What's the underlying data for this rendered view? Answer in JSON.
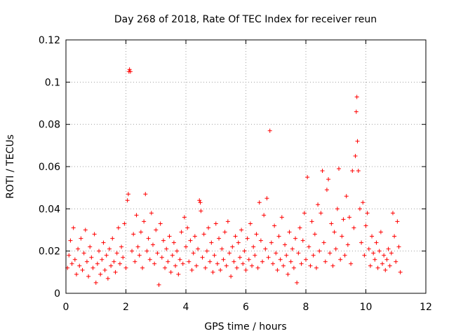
{
  "chart_data": {
    "type": "scatter",
    "title": "Day 268 of 2018, Rate Of TEC Index for receiver reun",
    "xlabel": "GPS time / hours",
    "ylabel": "ROTI / TECUs",
    "xlim": [
      0,
      12
    ],
    "ylim": [
      0,
      0.12
    ],
    "xticks": [
      0,
      2,
      4,
      6,
      8,
      10,
      12
    ],
    "xtick_labels": [
      "0",
      "2",
      "4",
      "6",
      "8",
      "10",
      "12"
    ],
    "yticks": [
      0,
      0.02,
      0.04,
      0.06,
      0.08,
      0.1,
      0.12
    ],
    "ytick_labels": [
      "0",
      "0.02",
      "0.04",
      "0.06",
      "0.08",
      "0.1",
      "0.12"
    ],
    "grid": true,
    "marker": "+",
    "color": "#ff0000",
    "series": [
      {
        "name": "ROTI",
        "points": [
          [
            0.05,
            0.012
          ],
          [
            0.1,
            0.018
          ],
          [
            0.15,
            0.025
          ],
          [
            0.2,
            0.014
          ],
          [
            0.25,
            0.031
          ],
          [
            0.3,
            0.016
          ],
          [
            0.35,
            0.009
          ],
          [
            0.4,
            0.021
          ],
          [
            0.45,
            0.013
          ],
          [
            0.5,
            0.026
          ],
          [
            0.55,
            0.011
          ],
          [
            0.6,
            0.019
          ],
          [
            0.65,
            0.03
          ],
          [
            0.7,
            0.015
          ],
          [
            0.75,
            0.008
          ],
          [
            0.8,
            0.022
          ],
          [
            0.85,
            0.017
          ],
          [
            0.9,
            0.012
          ],
          [
            0.95,
            0.028
          ],
          [
            1.0,
            0.005
          ],
          [
            1.05,
            0.014
          ],
          [
            1.1,
            0.02
          ],
          [
            1.15,
            0.009
          ],
          [
            1.2,
            0.016
          ],
          [
            1.25,
            0.024
          ],
          [
            1.3,
            0.011
          ],
          [
            1.35,
            0.018
          ],
          [
            1.4,
            0.007
          ],
          [
            1.45,
            0.021
          ],
          [
            1.5,
            0.013
          ],
          [
            1.55,
            0.026
          ],
          [
            1.6,
            0.015
          ],
          [
            1.65,
            0.01
          ],
          [
            1.7,
            0.019
          ],
          [
            1.75,
            0.031
          ],
          [
            1.8,
            0.014
          ],
          [
            1.85,
            0.022
          ],
          [
            1.9,
            0.017
          ],
          [
            1.95,
            0.033
          ],
          [
            2.0,
            0.012
          ],
          [
            2.05,
            0.044
          ],
          [
            2.08,
            0.047
          ],
          [
            2.1,
            0.105
          ],
          [
            2.12,
            0.106
          ],
          [
            2.15,
            0.105
          ],
          [
            2.2,
            0.02
          ],
          [
            2.25,
            0.028
          ],
          [
            2.3,
            0.015
          ],
          [
            2.35,
            0.037
          ],
          [
            2.4,
            0.022
          ],
          [
            2.45,
            0.018
          ],
          [
            2.5,
            0.029
          ],
          [
            2.55,
            0.012
          ],
          [
            2.6,
            0.034
          ],
          [
            2.65,
            0.047
          ],
          [
            2.7,
            0.02
          ],
          [
            2.75,
            0.026
          ],
          [
            2.8,
            0.016
          ],
          [
            2.85,
            0.038
          ],
          [
            2.9,
            0.023
          ],
          [
            2.95,
            0.014
          ],
          [
            3.0,
            0.03
          ],
          [
            3.05,
            0.019
          ],
          [
            3.1,
            0.004
          ],
          [
            3.15,
            0.033
          ],
          [
            3.2,
            0.017
          ],
          [
            3.25,
            0.025
          ],
          [
            3.3,
            0.012
          ],
          [
            3.35,
            0.021
          ],
          [
            3.4,
            0.015
          ],
          [
            3.45,
            0.027
          ],
          [
            3.5,
            0.01
          ],
          [
            3.55,
            0.018
          ],
          [
            3.6,
            0.024
          ],
          [
            3.65,
            0.013
          ],
          [
            3.7,
            0.02
          ],
          [
            3.75,
            0.009
          ],
          [
            3.8,
            0.016
          ],
          [
            3.85,
            0.029
          ],
          [
            3.9,
            0.014
          ],
          [
            3.95,
            0.036
          ],
          [
            4.0,
            0.022
          ],
          [
            4.05,
            0.031
          ],
          [
            4.1,
            0.015
          ],
          [
            4.15,
            0.025
          ],
          [
            4.2,
            0.011
          ],
          [
            4.25,
            0.019
          ],
          [
            4.3,
            0.027
          ],
          [
            4.35,
            0.013
          ],
          [
            4.4,
            0.021
          ],
          [
            4.45,
            0.044
          ],
          [
            4.48,
            0.043
          ],
          [
            4.5,
            0.039
          ],
          [
            4.55,
            0.017
          ],
          [
            4.6,
            0.028
          ],
          [
            4.65,
            0.012
          ],
          [
            4.7,
            0.02
          ],
          [
            4.75,
            0.031
          ],
          [
            4.8,
            0.015
          ],
          [
            4.85,
            0.024
          ],
          [
            4.9,
            0.01
          ],
          [
            4.95,
            0.018
          ],
          [
            5.0,
            0.033
          ],
          [
            5.05,
            0.014
          ],
          [
            5.1,
            0.026
          ],
          [
            5.15,
            0.011
          ],
          [
            5.2,
            0.021
          ],
          [
            5.25,
            0.016
          ],
          [
            5.3,
            0.029
          ],
          [
            5.35,
            0.013
          ],
          [
            5.4,
            0.034
          ],
          [
            5.45,
            0.019
          ],
          [
            5.5,
            0.008
          ],
          [
            5.55,
            0.022
          ],
          [
            5.6,
            0.015
          ],
          [
            5.65,
            0.027
          ],
          [
            5.7,
            0.012
          ],
          [
            5.75,
            0.024
          ],
          [
            5.8,
            0.017
          ],
          [
            5.85,
            0.03
          ],
          [
            5.9,
            0.014
          ],
          [
            5.95,
            0.02
          ],
          [
            6.0,
            0.011
          ],
          [
            6.05,
            0.026
          ],
          [
            6.1,
            0.016
          ],
          [
            6.15,
            0.033
          ],
          [
            6.2,
            0.013
          ],
          [
            6.25,
            0.022
          ],
          [
            6.3,
            0.018
          ],
          [
            6.35,
            0.028
          ],
          [
            6.4,
            0.012
          ],
          [
            6.45,
            0.043
          ],
          [
            6.5,
            0.025
          ],
          [
            6.55,
            0.015
          ],
          [
            6.6,
            0.037
          ],
          [
            6.65,
            0.021
          ],
          [
            6.7,
            0.045
          ],
          [
            6.75,
            0.017
          ],
          [
            6.8,
            0.077
          ],
          [
            6.85,
            0.024
          ],
          [
            6.9,
            0.014
          ],
          [
            6.95,
            0.032
          ],
          [
            7.0,
            0.019
          ],
          [
            7.05,
            0.011
          ],
          [
            7.1,
            0.027
          ],
          [
            7.15,
            0.016
          ],
          [
            7.2,
            0.036
          ],
          [
            7.25,
            0.013
          ],
          [
            7.3,
            0.023
          ],
          [
            7.35,
            0.018
          ],
          [
            7.4,
            0.009
          ],
          [
            7.45,
            0.029
          ],
          [
            7.5,
            0.015
          ],
          [
            7.55,
            0.021
          ],
          [
            7.6,
            0.012
          ],
          [
            7.65,
            0.026
          ],
          [
            7.7,
            0.005
          ],
          [
            7.75,
            0.019
          ],
          [
            7.8,
            0.031
          ],
          [
            7.85,
            0.014
          ],
          [
            7.9,
            0.025
          ],
          [
            7.95,
            0.038
          ],
          [
            8.0,
            0.016
          ],
          [
            8.05,
            0.055
          ],
          [
            8.1,
            0.022
          ],
          [
            8.15,
            0.013
          ],
          [
            8.2,
            0.034
          ],
          [
            8.25,
            0.018
          ],
          [
            8.3,
            0.028
          ],
          [
            8.35,
            0.012
          ],
          [
            8.4,
            0.042
          ],
          [
            8.45,
            0.02
          ],
          [
            8.5,
            0.038
          ],
          [
            8.55,
            0.058
          ],
          [
            8.6,
            0.024
          ],
          [
            8.65,
            0.015
          ],
          [
            8.7,
            0.049
          ],
          [
            8.75,
            0.054
          ],
          [
            8.8,
            0.019
          ],
          [
            8.85,
            0.033
          ],
          [
            8.9,
            0.013
          ],
          [
            8.95,
            0.029
          ],
          [
            9.0,
            0.021
          ],
          [
            9.05,
            0.04
          ],
          [
            9.1,
            0.059
          ],
          [
            9.15,
            0.016
          ],
          [
            9.2,
            0.027
          ],
          [
            9.25,
            0.035
          ],
          [
            9.3,
            0.018
          ],
          [
            9.35,
            0.046
          ],
          [
            9.4,
            0.023
          ],
          [
            9.45,
            0.036
          ],
          [
            9.5,
            0.014
          ],
          [
            9.55,
            0.058
          ],
          [
            9.6,
            0.031
          ],
          [
            9.65,
            0.065
          ],
          [
            9.68,
            0.086
          ],
          [
            9.7,
            0.093
          ],
          [
            9.72,
            0.072
          ],
          [
            9.75,
            0.058
          ],
          [
            9.8,
            0.04
          ],
          [
            9.85,
            0.024
          ],
          [
            9.9,
            0.043
          ],
          [
            9.95,
            0.018
          ],
          [
            10.0,
            0.032
          ],
          [
            10.05,
            0.038
          ],
          [
            10.1,
            0.021
          ],
          [
            10.15,
            0.013
          ],
          [
            10.2,
            0.027
          ],
          [
            10.25,
            0.019
          ],
          [
            10.3,
            0.016
          ],
          [
            10.35,
            0.024
          ],
          [
            10.4,
            0.012
          ],
          [
            10.45,
            0.02
          ],
          [
            10.5,
            0.029
          ],
          [
            10.55,
            0.014
          ],
          [
            10.6,
            0.018
          ],
          [
            10.65,
            0.011
          ],
          [
            10.7,
            0.016
          ],
          [
            10.75,
            0.021
          ],
          [
            10.8,
            0.013
          ],
          [
            10.85,
            0.019
          ],
          [
            10.9,
            0.038
          ],
          [
            10.95,
            0.027
          ],
          [
            11.0,
            0.015
          ],
          [
            11.05,
            0.034
          ],
          [
            11.1,
            0.022
          ],
          [
            11.15,
            0.01
          ]
        ]
      }
    ]
  }
}
